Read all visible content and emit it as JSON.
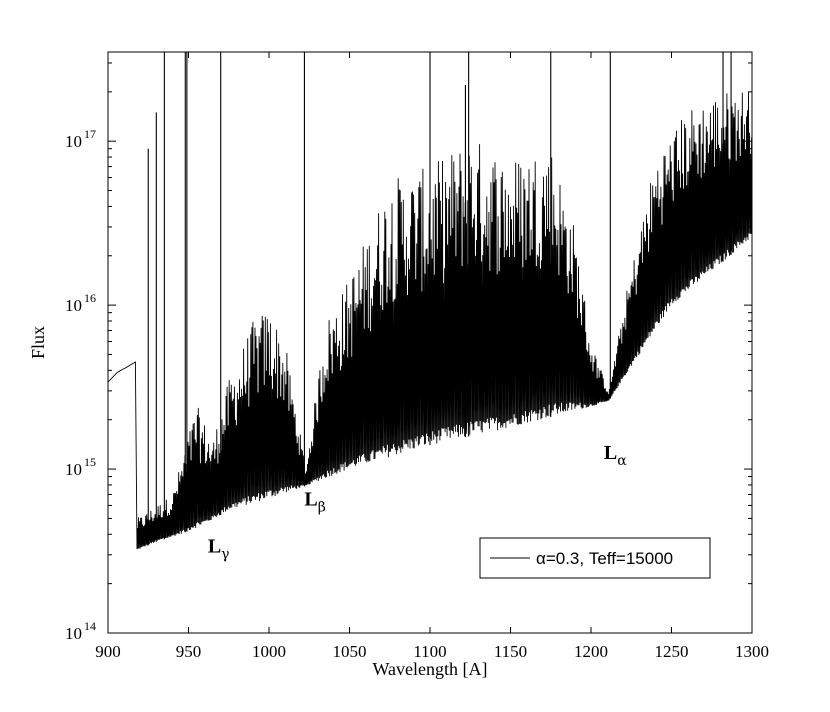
{
  "chart_data": {
    "type": "line",
    "title": "",
    "xlabel": "Wavelength [A]",
    "ylabel": "Flux",
    "xlim": [
      900,
      1300
    ],
    "ylim": [
      100000000000000.0,
      3.5e+17
    ],
    "yscale": "log",
    "grid": false,
    "legend_position": "bottom-right",
    "line_color": "#000000",
    "x_ticks": [
      900,
      950,
      1000,
      1050,
      1100,
      1150,
      1200,
      1250,
      1300
    ],
    "x_tick_labels": [
      "900",
      "950",
      "1000",
      "1050",
      "1100",
      "1150",
      "1200",
      "1250",
      "1300"
    ],
    "y_ticks": [
      {
        "value": 100000000000000.0,
        "base": "10",
        "exp": "14"
      },
      {
        "value": 1000000000000000.0,
        "base": "10",
        "exp": "15"
      },
      {
        "value": 1e+16,
        "base": "10",
        "exp": "16"
      },
      {
        "value": 1e+17,
        "base": "10",
        "exp": "17"
      }
    ],
    "annotations": [
      {
        "id": "l-gamma",
        "main": "L",
        "sub": "γ",
        "x": 962,
        "y": 310000000000000.0
      },
      {
        "id": "l-beta",
        "main": "L",
        "sub": "β",
        "x": 1022,
        "y": 600000000000000.0
      },
      {
        "id": "l-alpha",
        "main": "L",
        "sub": "α",
        "x": 1208,
        "y": 1150000000000000.0
      }
    ],
    "series": [
      {
        "name": "α=0.3, Teff=15000",
        "continuum": [
          [
            900,
            3400000000000000.0
          ],
          [
            906,
            3900000000000000.0
          ],
          [
            912,
            4200000000000000.0
          ],
          [
            917,
            4500000000000000.0
          ],
          [
            918,
            320000000000000.0
          ],
          [
            930,
            360000000000000.0
          ],
          [
            945,
            400000000000000.0
          ],
          [
            960,
            460000000000000.0
          ],
          [
            975,
            560000000000000.0
          ],
          [
            1000,
            660000000000000.0
          ],
          [
            1023,
            790000000000000.0
          ],
          [
            1050,
            1000000000000000.0
          ],
          [
            1100,
            1400000000000000.0
          ],
          [
            1150,
            1800000000000000.0
          ],
          [
            1200,
            2400000000000000.0
          ],
          [
            1211,
            2600000000000000.0
          ],
          [
            1250,
            1e+16
          ],
          [
            1300,
            2.6e+16
          ]
        ],
        "envelope": [
          [
            918,
            500000000000000.0
          ],
          [
            940,
            700000000000000.0
          ],
          [
            955,
            2500000000000000.0
          ],
          [
            965,
            1500000000000000.0
          ],
          [
            975,
            3500000000000000.0
          ],
          [
            990,
            8000000000000000.0
          ],
          [
            1000,
            1e+16
          ],
          [
            1010,
            6000000000000000.0
          ],
          [
            1023,
            1000000000000000.0
          ],
          [
            1035,
            8000000000000000.0
          ],
          [
            1050,
            1.5e+16
          ],
          [
            1075,
            6e+16
          ],
          [
            1100,
            7e+16
          ],
          [
            1125,
            1.1e+17
          ],
          [
            1150,
            8e+16
          ],
          [
            1175,
            1e+17
          ],
          [
            1190,
            3e+16
          ],
          [
            1200,
            6000000000000000.0
          ],
          [
            1211,
            3000000000000000.0
          ],
          [
            1222,
            1.2e+16
          ],
          [
            1240,
            8e+16
          ],
          [
            1260,
            1.6e+17
          ],
          [
            1280,
            2e+17
          ],
          [
            1300,
            2.2e+17
          ]
        ],
        "dense_start": 918,
        "dense_end": 1300,
        "spikes": [
          {
            "x": 925,
            "y": 9e+16
          },
          {
            "x": 930,
            "y": 1.5e+17
          },
          {
            "x": 935,
            "y": 3.5e+17
          },
          {
            "x": 948,
            "y": 3.5e+17
          },
          {
            "x": 949,
            "y": 3.5e+17
          },
          {
            "x": 970,
            "y": 3.5e+17
          },
          {
            "x": 1022,
            "y": 3.5e+17
          },
          {
            "x": 1100,
            "y": 3.5e+17
          },
          {
            "x": 1122,
            "y": 2.2e+17
          },
          {
            "x": 1124,
            "y": 3.5e+17
          },
          {
            "x": 1175,
            "y": 3.5e+17
          },
          {
            "x": 1212,
            "y": 3.5e+17
          },
          {
            "x": 1282,
            "y": 3.5e+17
          },
          {
            "x": 1287,
            "y": 3.5e+17
          }
        ]
      }
    ]
  }
}
